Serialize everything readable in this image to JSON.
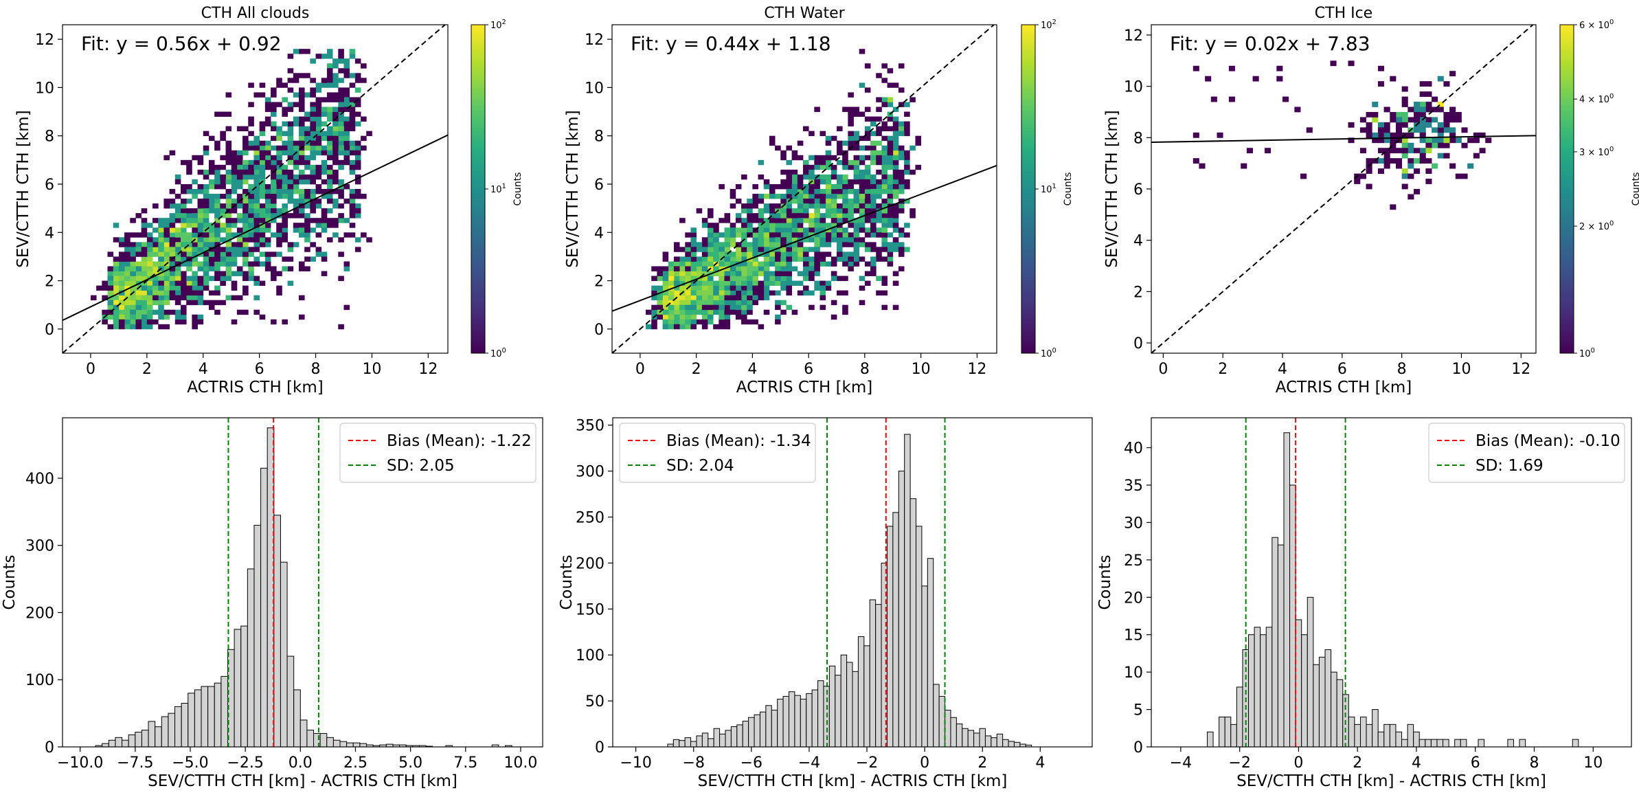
{
  "chart_data": [
    {
      "type": "heatmap",
      "title": "CTH All clouds",
      "xlabel": "ACTRIS CTH [km]",
      "ylabel": "SEV/CTTH CTH [km]",
      "xlim": [
        -1,
        12.7
      ],
      "ylim": [
        -1,
        12.6
      ],
      "xticks": [
        0,
        2,
        4,
        6,
        8,
        10,
        12
      ],
      "yticks": [
        0,
        2,
        4,
        6,
        8,
        10,
        12
      ],
      "fit_text": "Fit: y = 0.56x + 0.92",
      "fit": {
        "slope": 0.56,
        "intercept": 0.92
      },
      "identity_line": true,
      "density": {
        "x_range": [
          0,
          10
        ],
        "center_start": [
          0.8,
          1.0
        ],
        "center_end": [
          9.5,
          8.5
        ],
        "spread": [
          0.9,
          1.8
        ]
      },
      "colorbar": {
        "label": "Counts",
        "scale": "log",
        "min": 1,
        "max": 100,
        "ticks": [
          {
            "v": 1,
            "base": "10",
            "exp": "0"
          },
          {
            "v": 10,
            "base": "10",
            "exp": "1"
          },
          {
            "v": 100,
            "base": "10",
            "exp": "2"
          }
        ]
      }
    },
    {
      "type": "heatmap",
      "title": "CTH Water",
      "xlabel": "ACTRIS CTH [km]",
      "ylabel": "SEV/CTTH CTH [km]",
      "xlim": [
        -1,
        12.7
      ],
      "ylim": [
        -1,
        12.6
      ],
      "xticks": [
        0,
        2,
        4,
        6,
        8,
        10,
        12
      ],
      "yticks": [
        0,
        2,
        4,
        6,
        8,
        10,
        12
      ],
      "fit_text": "Fit: y = 0.44x + 1.18",
      "fit": {
        "slope": 0.44,
        "intercept": 1.18
      },
      "identity_line": true,
      "density": {
        "x_range": [
          0,
          10
        ],
        "center_start": [
          0.8,
          1.0
        ],
        "center_end": [
          9.5,
          6.5
        ],
        "spread": [
          0.8,
          1.5
        ]
      },
      "colorbar": {
        "label": "Counts",
        "scale": "log",
        "min": 1,
        "max": 100,
        "ticks": [
          {
            "v": 1,
            "base": "10",
            "exp": "0"
          },
          {
            "v": 10,
            "base": "10",
            "exp": "1"
          },
          {
            "v": 100,
            "base": "10",
            "exp": "2"
          }
        ]
      }
    },
    {
      "type": "heatmap",
      "title": "CTH Ice",
      "xlabel": "ACTRIS CTH [km]",
      "ylabel": "SEV/CTTH CTH [km]",
      "xlim": [
        -0.4,
        12.5
      ],
      "ylim": [
        -0.4,
        12.4
      ],
      "xticks": [
        0,
        2,
        4,
        6,
        8,
        10,
        12
      ],
      "yticks": [
        0,
        2,
        4,
        6,
        8,
        10,
        12
      ],
      "fit_text": "Fit: y = 0.02x + 7.83",
      "fit": {
        "slope": 0.02,
        "intercept": 7.83
      },
      "identity_line": true,
      "density": {
        "x_range": [
          0,
          11
        ],
        "center_start": [
          8.0,
          7.5
        ],
        "center_end": [
          9.0,
          8.5
        ],
        "spread": [
          0.9,
          0.8
        ]
      },
      "colorbar": {
        "label": "Counts",
        "scale": "log",
        "min": 1,
        "max": 6,
        "ticks": [
          {
            "v": 1,
            "base": "10",
            "exp": "0"
          },
          {
            "v": 2,
            "base": "2 × 10",
            "exp": "0"
          },
          {
            "v": 3,
            "base": "3 × 10",
            "exp": "0"
          },
          {
            "v": 4,
            "base": "4 × 10",
            "exp": "0"
          },
          {
            "v": 6,
            "base": "6 × 10",
            "exp": "0"
          }
        ]
      }
    },
    {
      "type": "bar",
      "xlabel": "SEV/CTTH CTH [km] - ACTRIS CTH [km]",
      "ylabel": "Counts",
      "xlim": [
        -10.8,
        11.0
      ],
      "ylim": [
        0,
        490
      ],
      "xticks": [
        -10.0,
        -7.5,
        -5.0,
        -2.5,
        0.0,
        2.5,
        5.0,
        7.5,
        10.0
      ],
      "xtick_labels": [
        "−10.0",
        "−7.5",
        "−5.0",
        "−2.5",
        "0.0",
        "2.5",
        "5.0",
        "7.5",
        "10.0"
      ],
      "yticks": [
        0,
        100,
        200,
        300,
        400
      ],
      "bin_start": -9.3,
      "bin_width": 0.3,
      "values": [
        2,
        5,
        10,
        14,
        10,
        18,
        22,
        25,
        38,
        30,
        45,
        50,
        60,
        65,
        80,
        85,
        90,
        90,
        95,
        105,
        145,
        175,
        180,
        265,
        330,
        415,
        475,
        345,
        275,
        135,
        85,
        40,
        25,
        20,
        20,
        14,
        10,
        8,
        6,
        6,
        5,
        3,
        2,
        3,
        4,
        3,
        3,
        2,
        2,
        2,
        1,
        0,
        0,
        2,
        0,
        0,
        0,
        0,
        0,
        0,
        3,
        0,
        2
      ],
      "bias": -1.22,
      "sd_lines": [
        -3.27,
        0.83
      ],
      "legend": {
        "position": "upper right",
        "entries": [
          {
            "label": "Bias (Mean): -1.22",
            "color": "#ff0000"
          },
          {
            "label": "SD: 2.05",
            "color": "#008000"
          }
        ]
      }
    },
    {
      "type": "bar",
      "xlabel": "SEV/CTTH CTH [km] - ACTRIS CTH [km]",
      "ylabel": "Counts",
      "xlim": [
        -10.8,
        5.8
      ],
      "ylim": [
        0,
        358
      ],
      "xticks": [
        -10,
        -8,
        -6,
        -4,
        -2,
        0,
        2,
        4
      ],
      "xtick_labels": [
        "−10",
        "−8",
        "−6",
        "−4",
        "−2",
        "0",
        "2",
        "4"
      ],
      "yticks": [
        0,
        50,
        100,
        150,
        200,
        250,
        300,
        350
      ],
      "bin_start": -8.9,
      "bin_width": 0.2,
      "values": [
        3,
        8,
        7,
        10,
        6,
        12,
        15,
        9,
        20,
        14,
        18,
        22,
        24,
        28,
        32,
        35,
        38,
        45,
        40,
        52,
        55,
        60,
        56,
        52,
        58,
        62,
        72,
        66,
        88,
        78,
        100,
        92,
        82,
        120,
        110,
        160,
        155,
        200,
        240,
        255,
        300,
        340,
        270,
        240,
        175,
        205,
        68,
        55,
        40,
        32,
        25,
        20,
        18,
        15,
        20,
        12,
        10,
        14,
        8,
        6,
        5,
        3,
        2
      ],
      "bias": -1.34,
      "sd_lines": [
        -3.38,
        0.7
      ],
      "legend": {
        "position": "upper left",
        "entries": [
          {
            "label": "Bias (Mean): -1.34",
            "color": "#ff0000"
          },
          {
            "label": "SD: 2.04",
            "color": "#008000"
          }
        ]
      }
    },
    {
      "type": "bar",
      "xlabel": "SEV/CTTH CTH [km] - ACTRIS CTH [km]",
      "ylabel": "Counts",
      "xlim": [
        -5.0,
        11.3
      ],
      "ylim": [
        0,
        44
      ],
      "xticks": [
        -4,
        -2,
        0,
        2,
        4,
        6,
        8,
        10
      ],
      "xtick_labels": [
        "−4",
        "−2",
        "0",
        "2",
        "4",
        "6",
        "8",
        "10"
      ],
      "yticks": [
        0,
        5,
        10,
        15,
        20,
        25,
        30,
        35,
        40
      ],
      "bin_start": -3.1,
      "bin_width": 0.2,
      "values": [
        2,
        0,
        4,
        4,
        3,
        8,
        13,
        15,
        16,
        15,
        16,
        28,
        27,
        42,
        35,
        17,
        15,
        20,
        11,
        12,
        13,
        10,
        9,
        7,
        4,
        3,
        4,
        3,
        5,
        2,
        3,
        3,
        2,
        1,
        3,
        2,
        1,
        1,
        1,
        1,
        1,
        0,
        1,
        1,
        0,
        0,
        1,
        0,
        0,
        0,
        0,
        1,
        0,
        1,
        0,
        0,
        0,
        0,
        0,
        0,
        0,
        0,
        1
      ],
      "bias": -0.1,
      "sd_lines": [
        -1.79,
        1.59
      ],
      "legend": {
        "position": "upper right",
        "entries": [
          {
            "label": "Bias (Mean): -0.10",
            "color": "#ff0000"
          },
          {
            "label": "SD: 1.69",
            "color": "#008000"
          }
        ]
      }
    }
  ]
}
